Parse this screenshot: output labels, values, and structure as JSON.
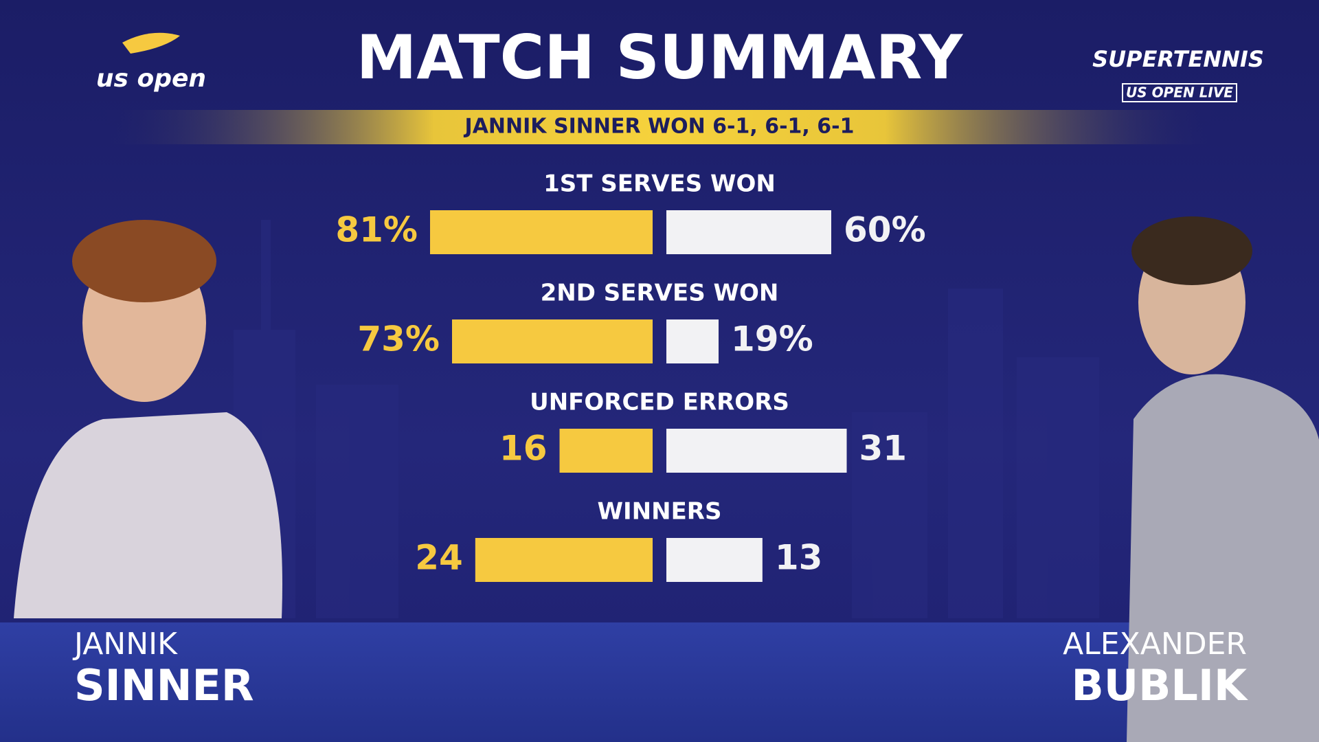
{
  "chart_data": {
    "type": "butterfly",
    "title": "MATCH SUMMARY",
    "subtitle": "JANNIK SINNER WON 6-1, 6-1, 6-1",
    "categories": [
      "1ST SERVES WON",
      "2ND SERVES WON",
      "UNFORCED ERRORS",
      "WINNERS"
    ],
    "series": [
      {
        "color": "#f6c940",
        "values": [
          81,
          73,
          16,
          24
        ],
        "value_labels": [
          "81%",
          "73%",
          "16",
          "24"
        ]
      },
      {
        "color": "#f2f2f4",
        "values": [
          60,
          19,
          31,
          13
        ],
        "value_labels": [
          "60%",
          "19%",
          "31",
          "13"
        ]
      }
    ]
  },
  "branding": {
    "left_logo": "us open",
    "right_logo": "SUPERTENNIS",
    "right_logo_sub": "US OPEN LIVE"
  },
  "players": [
    {
      "first": "JANNIK",
      "last": "SINNER"
    },
    {
      "first": "ALEXANDER",
      "last": "BUBLIK"
    }
  ]
}
